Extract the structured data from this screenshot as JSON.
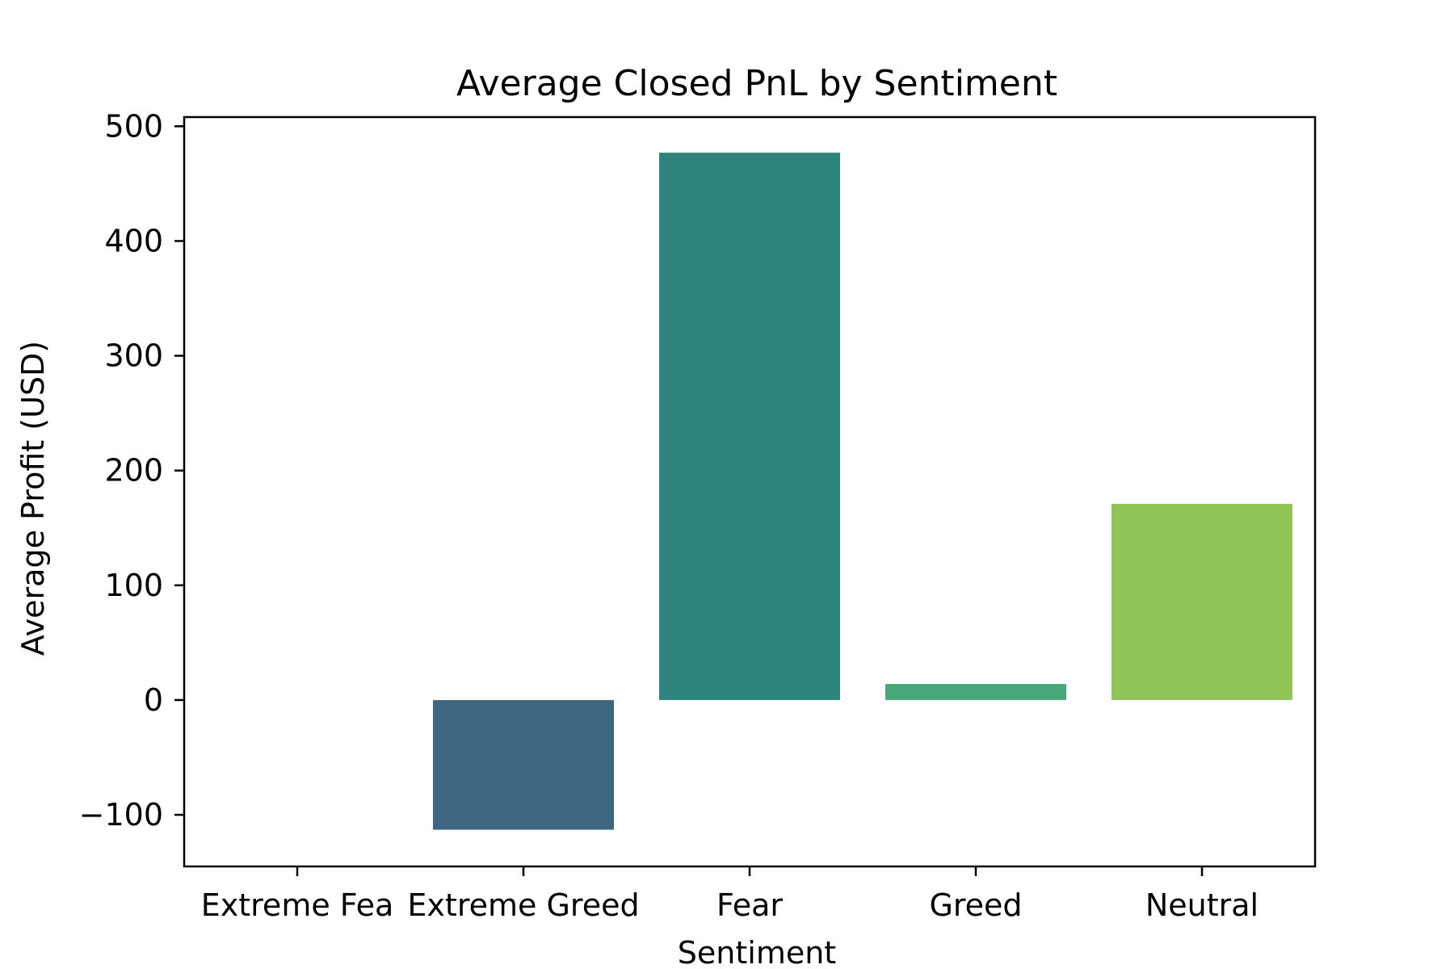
{
  "chart_data": {
    "type": "bar",
    "title": "Average Closed PnL by Sentiment",
    "xlabel": "Sentiment",
    "ylabel": "Average Profit (USD)",
    "categories": [
      "Extreme Fear",
      "Extreme Greed",
      "Fear",
      "Greed",
      "Neutral"
    ],
    "tick_labels": [
      "Extreme Fea",
      "Extreme Greed",
      "Fear",
      "Greed",
      "Neutral"
    ],
    "values": [
      0,
      -113,
      477,
      14,
      171
    ],
    "colors": [
      "#440154",
      "#3e6680",
      "#2e837c",
      "#48a87a",
      "#8ec556"
    ],
    "ylim": [
      -145,
      508
    ],
    "yticks": [
      -100,
      0,
      100,
      200,
      300,
      400,
      500
    ],
    "ytick_labels": [
      "−100",
      "0",
      "100",
      "200",
      "300",
      "400",
      "500"
    ],
    "grid": false,
    "legend": "none"
  }
}
